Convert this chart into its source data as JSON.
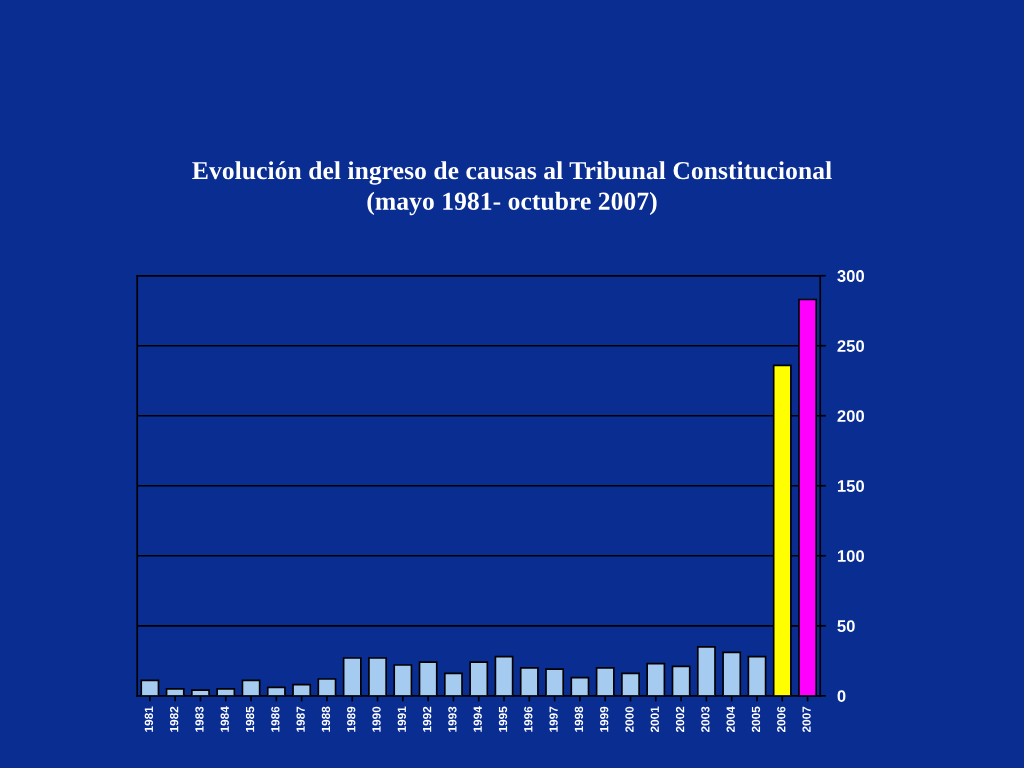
{
  "chart_data": {
    "type": "bar",
    "title": "Evolución del ingreso de causas al Tribunal Constitucional\n(mayo 1981- octubre 2007)",
    "categories": [
      "1981",
      "1982",
      "1983",
      "1984",
      "1985",
      "1986",
      "1987",
      "1988",
      "1989",
      "1990",
      "1991",
      "1992",
      "1993",
      "1994",
      "1995",
      "1996",
      "1997",
      "1998",
      "1999",
      "2000",
      "2001",
      "2002",
      "2003",
      "2004",
      "2005",
      "2006",
      "2007"
    ],
    "values": [
      11,
      5,
      4,
      5,
      11,
      6,
      8,
      12,
      27,
      27,
      22,
      24,
      16,
      24,
      28,
      20,
      19,
      13,
      20,
      16,
      23,
      21,
      35,
      31,
      28,
      236,
      283
    ],
    "colors": [
      "#a6cbf0",
      "#a6cbf0",
      "#a6cbf0",
      "#a6cbf0",
      "#a6cbf0",
      "#a6cbf0",
      "#a6cbf0",
      "#a6cbf0",
      "#a6cbf0",
      "#a6cbf0",
      "#a6cbf0",
      "#a6cbf0",
      "#a6cbf0",
      "#a6cbf0",
      "#a6cbf0",
      "#a6cbf0",
      "#a6cbf0",
      "#a6cbf0",
      "#a6cbf0",
      "#a6cbf0",
      "#a6cbf0",
      "#a6cbf0",
      "#a6cbf0",
      "#a6cbf0",
      "#a6cbf0",
      "#ffff00",
      "#ff00ff"
    ],
    "ylim": [
      0,
      300
    ],
    "yticks": [
      0,
      50,
      100,
      150,
      200,
      250,
      300
    ],
    "grid": "y"
  }
}
